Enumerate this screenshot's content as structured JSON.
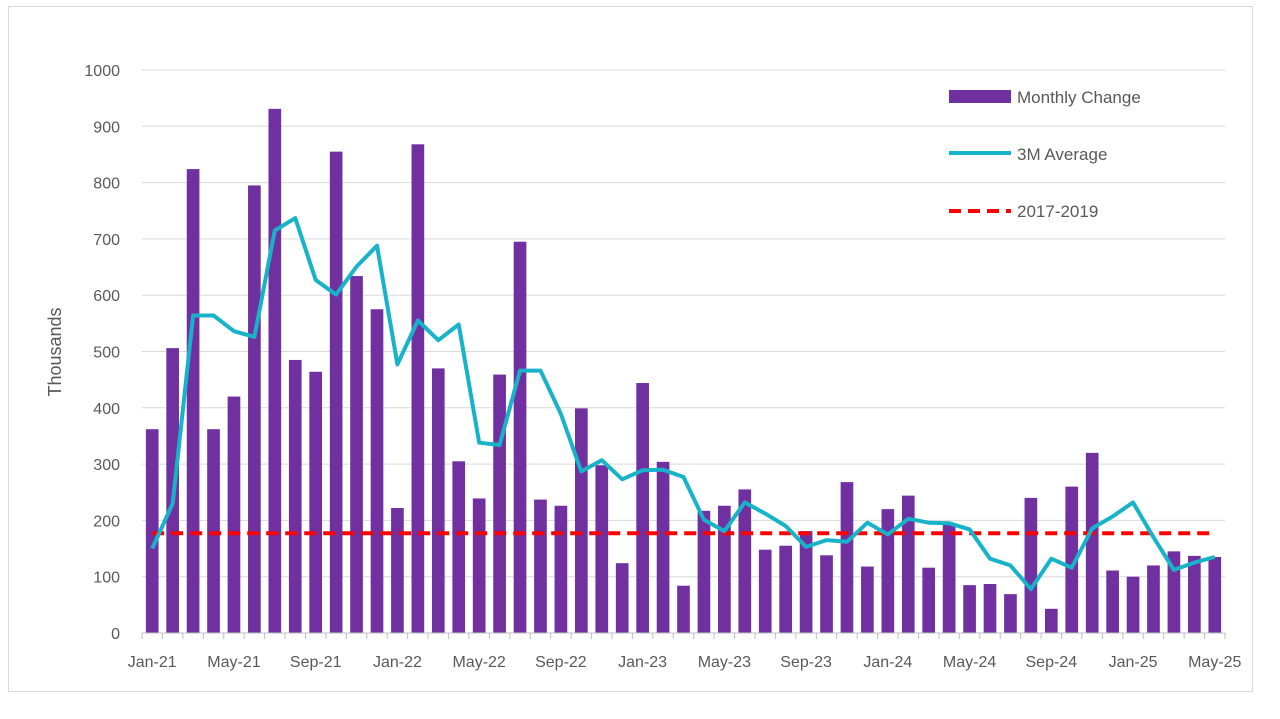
{
  "chart_data": {
    "type": "bar",
    "title": "",
    "ylabel": "Thousands",
    "xlabel": "",
    "ylim": [
      0,
      1000
    ],
    "yticks": [
      0,
      100,
      200,
      300,
      400,
      500,
      600,
      700,
      800,
      900,
      1000
    ],
    "grid": true,
    "legend_position": "top-right",
    "categories": [
      "Jan-21",
      "Feb-21",
      "Mar-21",
      "Apr-21",
      "May-21",
      "Jun-21",
      "Jul-21",
      "Aug-21",
      "Sep-21",
      "Oct-21",
      "Nov-21",
      "Dec-21",
      "Jan-22",
      "Feb-22",
      "Mar-22",
      "Apr-22",
      "May-22",
      "Jun-22",
      "Jul-22",
      "Aug-22",
      "Sep-22",
      "Oct-22",
      "Nov-22",
      "Dec-22",
      "Jan-23",
      "Feb-23",
      "Mar-23",
      "Apr-23",
      "May-23",
      "Jun-23",
      "Jul-23",
      "Aug-23",
      "Sep-23",
      "Oct-23",
      "Nov-23",
      "Dec-23",
      "Jan-24",
      "Feb-24",
      "Mar-24",
      "Apr-24",
      "May-24",
      "Jun-24",
      "Jul-24",
      "Aug-24",
      "Sep-24",
      "Oct-24",
      "Nov-24",
      "Dec-24",
      "Jan-25",
      "Feb-25",
      "Mar-25",
      "Apr-25",
      "May-25"
    ],
    "x_tick_labels": [
      {
        "index": 0,
        "label": "Jan-21"
      },
      {
        "index": 4,
        "label": "May-21"
      },
      {
        "index": 8,
        "label": "Sep-21"
      },
      {
        "index": 12,
        "label": "Jan-22"
      },
      {
        "index": 16,
        "label": "May-22"
      },
      {
        "index": 20,
        "label": "Sep-22"
      },
      {
        "index": 24,
        "label": "Jan-23"
      },
      {
        "index": 28,
        "label": "May-23"
      },
      {
        "index": 32,
        "label": "Sep-23"
      },
      {
        "index": 36,
        "label": "Jan-24"
      },
      {
        "index": 40,
        "label": "May-24"
      },
      {
        "index": 44,
        "label": "Sep-24"
      },
      {
        "index": 48,
        "label": "Jan-25"
      },
      {
        "index": 52,
        "label": "May-25"
      }
    ],
    "series": [
      {
        "name": "Monthly Change",
        "type": "bar",
        "color": "#7030a0",
        "values": [
          362,
          506,
          824,
          362,
          420,
          795,
          931,
          485,
          464,
          855,
          634,
          575,
          222,
          868,
          470,
          305,
          239,
          459,
          695,
          237,
          226,
          399,
          298,
          124,
          444,
          304,
          84,
          217,
          226,
          255,
          148,
          155,
          181,
          138,
          268,
          118,
          220,
          244,
          116,
          193,
          85,
          87,
          69,
          240,
          43,
          260,
          320,
          111,
          100,
          120,
          145,
          137,
          135
        ]
      },
      {
        "name": "3M Average",
        "type": "line",
        "color": "#17b3c9",
        "values": [
          150,
          230,
          564,
          564,
          536,
          526,
          715,
          737,
          627,
          601,
          651,
          688,
          477,
          555,
          520,
          548,
          338,
          334,
          466,
          466,
          389,
          287,
          307,
          273,
          289,
          290,
          277,
          201,
          181,
          232,
          212,
          190,
          153,
          165,
          162,
          196,
          175,
          203,
          196,
          195,
          184,
          132,
          120,
          78,
          132,
          116,
          186,
          207,
          232,
          170,
          112,
          125,
          135
        ]
      },
      {
        "name": "2017-2019",
        "type": "line",
        "style": "dashed",
        "color": "#ff0000",
        "values": [
          177,
          177,
          177,
          177,
          177,
          177,
          177,
          177,
          177,
          177,
          177,
          177,
          177,
          177,
          177,
          177,
          177,
          177,
          177,
          177,
          177,
          177,
          177,
          177,
          177,
          177,
          177,
          177,
          177,
          177,
          177,
          177,
          177,
          177,
          177,
          177,
          177,
          177,
          177,
          177,
          177,
          177,
          177,
          177,
          177,
          177,
          177,
          177,
          177,
          177,
          177,
          177,
          177
        ]
      }
    ]
  },
  "legend": {
    "bar_label": "Monthly Change",
    "line_label": "3M Average",
    "dashed_label": "2017-2019"
  },
  "colors": {
    "bar": "#7030a0",
    "line": "#17b3c9",
    "dashed": "#ff0000",
    "grid": "#d9d9d9",
    "text": "#595959"
  }
}
